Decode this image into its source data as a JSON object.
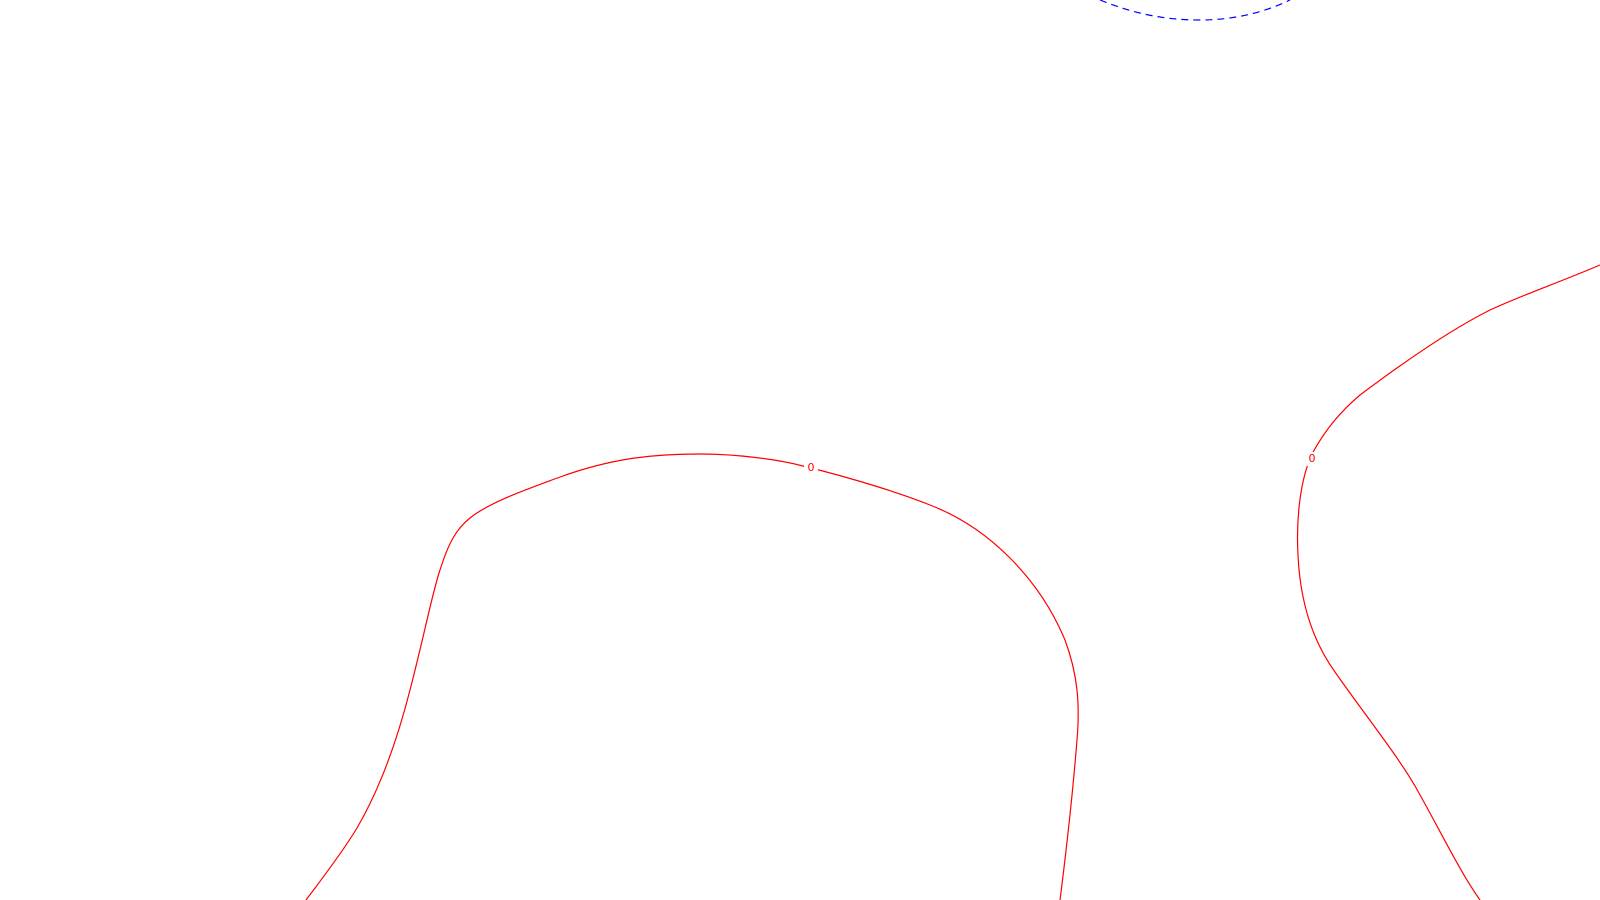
{
  "contours": {
    "zero_level": {
      "label": "0",
      "color": "#ff0000",
      "style": "solid"
    },
    "negative_level": {
      "color": "#0000ff",
      "style": "dashed"
    }
  },
  "labels": [
    {
      "id": "label-left-arch",
      "text": "0"
    },
    {
      "id": "label-right-curve",
      "text": "0"
    }
  ]
}
